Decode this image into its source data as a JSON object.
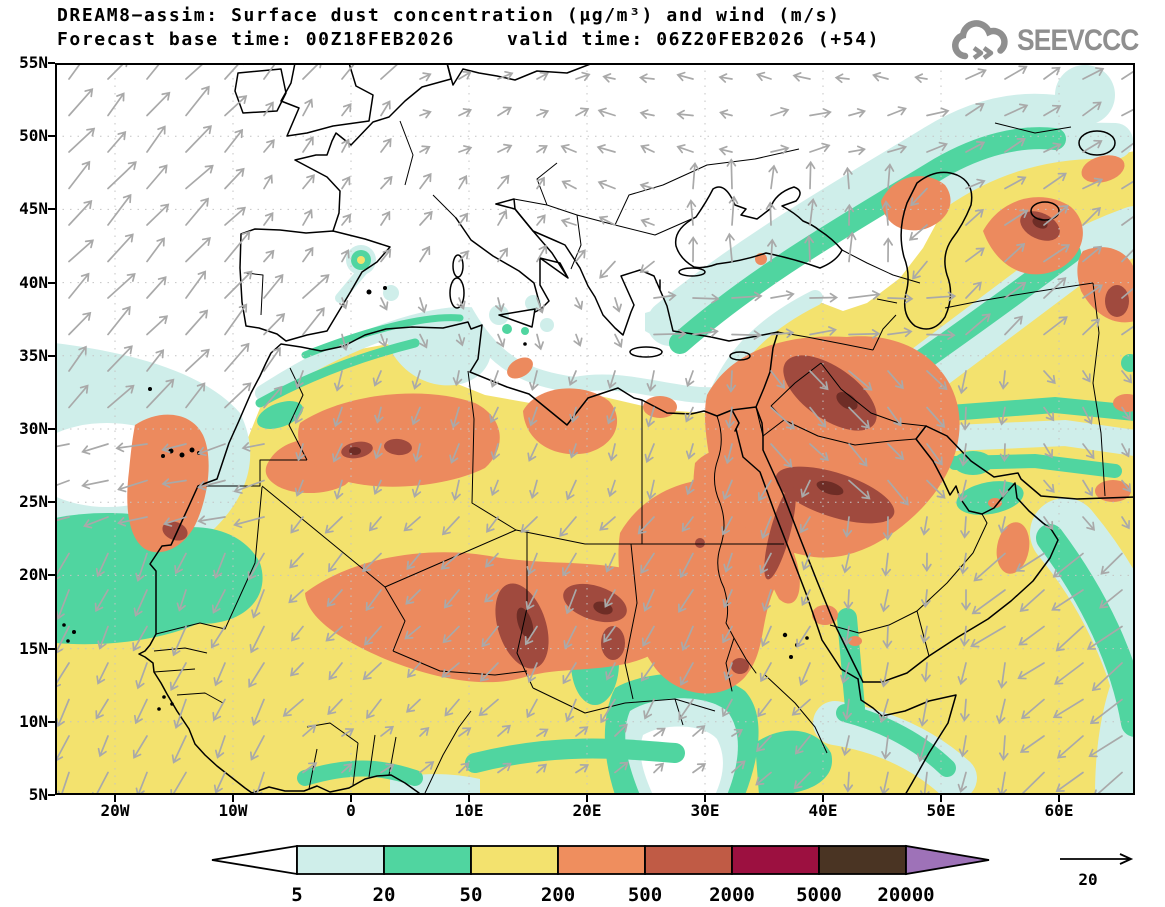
{
  "header": {
    "title_line1": "DREAM8−assim: Surface dust concentration (μg/m³) and wind (m/s)",
    "title_line2_left": "Forecast base time: 00Z18FEB2026",
    "title_line2_right": "valid time: 06Z20FEB2026 (+54)",
    "logo_text": "SEEVCCC"
  },
  "map": {
    "lat_ticks": [
      {
        "label": "55N",
        "lat": 55
      },
      {
        "label": "50N",
        "lat": 50
      },
      {
        "label": "45N",
        "lat": 45
      },
      {
        "label": "40N",
        "lat": 40
      },
      {
        "label": "35N",
        "lat": 35
      },
      {
        "label": "30N",
        "lat": 30
      },
      {
        "label": "25N",
        "lat": 25
      },
      {
        "label": "20N",
        "lat": 20
      },
      {
        "label": "15N",
        "lat": 15
      },
      {
        "label": "10N",
        "lat": 10
      },
      {
        "label": "5N",
        "lat": 5
      }
    ],
    "lon_ticks": [
      {
        "label": "20W",
        "lon": -20
      },
      {
        "label": "10W",
        "lon": -10
      },
      {
        "label": "0",
        "lon": 0
      },
      {
        "label": "10E",
        "lon": 10
      },
      {
        "label": "20E",
        "lon": 20
      },
      {
        "label": "30E",
        "lon": 30
      },
      {
        "label": "40E",
        "lon": 40
      },
      {
        "label": "50E",
        "lon": 50
      },
      {
        "label": "60E",
        "lon": 60
      }
    ],
    "wind_zones": [
      [
        0,
        0,
        1080,
        732,
        135,
        20
      ],
      [
        0,
        0,
        370,
        370,
        -48,
        32
      ],
      [
        0,
        360,
        250,
        475,
        165,
        26
      ],
      [
        0,
        475,
        265,
        732,
        115,
        26
      ],
      [
        220,
        430,
        730,
        680,
        133,
        21
      ],
      [
        480,
        480,
        700,
        670,
        118,
        22
      ],
      [
        215,
        285,
        700,
        430,
        108,
        17
      ],
      [
        280,
        215,
        640,
        300,
        70,
        13
      ],
      [
        195,
        30,
        540,
        215,
        -55,
        15
      ],
      [
        330,
        0,
        560,
        110,
        -25,
        13
      ],
      [
        520,
        60,
        700,
        190,
        200,
        15
      ],
      [
        540,
        0,
        880,
        60,
        192,
        14
      ],
      [
        620,
        100,
        840,
        212,
        -90,
        24
      ],
      [
        700,
        30,
        900,
        100,
        -15,
        18
      ],
      [
        596,
        215,
        910,
        275,
        -4,
        26
      ],
      [
        880,
        0,
        1080,
        140,
        -30,
        22
      ],
      [
        900,
        140,
        1080,
        300,
        -40,
        26
      ],
      [
        880,
        300,
        1080,
        470,
        55,
        15
      ],
      [
        660,
        300,
        980,
        630,
        97,
        19
      ],
      [
        700,
        280,
        890,
        430,
        47,
        26
      ],
      [
        940,
        470,
        1080,
        732,
        142,
        34
      ],
      [
        760,
        600,
        950,
        732,
        100,
        22
      ],
      [
        640,
        390,
        770,
        610,
        115,
        20
      ],
      [
        240,
        660,
        700,
        732,
        -38,
        14
      ]
    ]
  },
  "colorbar": {
    "tick_labels": [
      "5",
      "20",
      "50",
      "200",
      "500",
      "2000",
      "5000",
      "20000"
    ],
    "segment_colors": [
      "#cfeeea",
      "#50d5a0",
      "#f3e26e",
      "#ef8e5e",
      "#c05b45",
      "#9c1040",
      "#4a3423"
    ],
    "under_color": "#ffffff",
    "over_color": "#9e72b8"
  },
  "wind_reference": {
    "label": "20"
  },
  "chart_data": {
    "type": "heatmap",
    "subtype": "filled-contour-geographic-map-with-wind-vectors",
    "model": "DREAM8-assim",
    "title": "DREAM8−assim: Surface dust concentration (μg/m³) and wind (m/s)",
    "variable": "Surface dust concentration",
    "units": "μg/m³",
    "wind_units": "m/s",
    "forecast_base_time": "00Z18FEB2026",
    "valid_time": "06Z20FEB2026",
    "forecast_lead": "+54",
    "lon_range_deg": [
      -25,
      66
    ],
    "lat_range_deg": [
      5,
      55
    ],
    "lon_tick_labels": [
      "20W",
      "10W",
      "0",
      "10E",
      "20E",
      "30E",
      "40E",
      "50E",
      "60E"
    ],
    "lat_tick_labels": [
      "5N",
      "10N",
      "15N",
      "20N",
      "25N",
      "30N",
      "35N",
      "40N",
      "45N",
      "50N",
      "55N"
    ],
    "contour_levels": [
      5,
      20,
      50,
      200,
      500,
      2000,
      5000,
      20000
    ],
    "level_colors": {
      "under_5": "#ffffff",
      "5_20": "#cfeeea",
      "20_50": "#50d5a0",
      "50_200": "#f3e26e",
      "200_500": "#ef8e5e",
      "500_2000": "#c05b45",
      "2000_5000": "#9c1040",
      "5000_20000": "#4a3423",
      "over_20000": "#9e72b8"
    },
    "wind_reference_ms": 20,
    "gridlines": "dotted, 10 deg lon / 5 deg lat",
    "features": [
      "Dust 50-200 μg/m³ (yellow) covers nearly all of the Sahara, Sahel and Arabian Peninsula, extending over the Atlantic off West Africa",
      "Concentrations 200-500 μg/m³ (orange) over Western Sahara/Mauritania, central Algeria, the Mali-Niger-Chad belt, Sudan, Libya and a large Iraq-Saudi Arabia area",
      "Maxima 500-5000 μg/m³ (dark red) over the Bodele region of Chad, Iraq/Kuwait, central Saudi Arabia, the Red Sea coast and near the Caspian Sea",
      "Secondary dust areas around the Caucasus and east of the Caspian Sea",
      "5-50 μg/m³ fringes (cyan/green) along the Mediterranean coast, Anatolia-Caspian band, Iran, Oman, the Arabian Sea and the Gulf of Guinea",
      "Europe and the central Mediterranean mostly below 5 μg/m³ (white)",
      "Wind vectors up to ~20 m/s: southwesterly-turning flow over the Sahara (Harmattan), northeasterly flow over the NE Atlantic, strong easterlies across Anatolia toward the Caspian, northerlies over the Black Sea"
    ]
  }
}
